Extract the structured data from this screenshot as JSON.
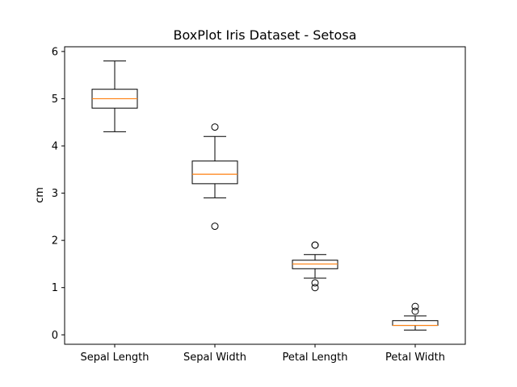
{
  "chart_data": {
    "type": "box",
    "title": "BoxPlot Iris Dataset - Setosa",
    "xlabel": "",
    "ylabel": "cm",
    "ylim": [
      -0.2,
      6.1
    ],
    "yticks": [
      0,
      1,
      2,
      3,
      4,
      5,
      6
    ],
    "grid": false,
    "colors": {
      "box": "#000000",
      "median": "#ff7f0e",
      "flier": "#000000"
    },
    "categories": [
      "Sepal Length",
      "Sepal Width",
      "Petal Length",
      "Petal Width"
    ],
    "boxes": [
      {
        "label": "Sepal Length",
        "whisker_low": 4.3,
        "q1": 4.8,
        "median": 5.0,
        "q3": 5.2,
        "whisker_high": 5.8,
        "fliers": []
      },
      {
        "label": "Sepal Width",
        "whisker_low": 2.9,
        "q1": 3.2,
        "median": 3.4,
        "q3": 3.68,
        "whisker_high": 4.2,
        "fliers": [
          2.3,
          4.4
        ]
      },
      {
        "label": "Petal Length",
        "whisker_low": 1.2,
        "q1": 1.4,
        "median": 1.5,
        "q3": 1.58,
        "whisker_high": 1.7,
        "fliers": [
          1.0,
          1.1,
          1.9,
          1.9
        ]
      },
      {
        "label": "Petal Width",
        "whisker_low": 0.1,
        "q1": 0.2,
        "median": 0.2,
        "q3": 0.3,
        "whisker_high": 0.4,
        "fliers": [
          0.5,
          0.6
        ]
      }
    ]
  }
}
